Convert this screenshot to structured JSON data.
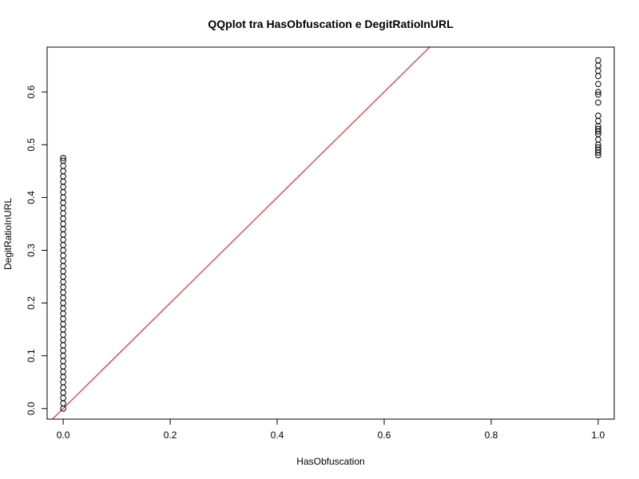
{
  "chart_data": {
    "type": "scatter",
    "title": "QQplot tra HasObfuscation e DegitRatioInURL",
    "xlabel": "HasObfuscation",
    "ylabel": "DegitRatioInURL",
    "xlim": [
      -0.03,
      1.03
    ],
    "ylim": [
      -0.02,
      0.685
    ],
    "xticks": [
      "0.0",
      "0.2",
      "0.4",
      "0.6",
      "0.8",
      "1.0"
    ],
    "xtick_values": [
      0,
      0.2,
      0.4,
      0.6,
      0.8,
      1.0
    ],
    "yticks": [
      "0.0",
      "0.1",
      "0.2",
      "0.3",
      "0.4",
      "0.5",
      "0.6"
    ],
    "ytick_values": [
      0,
      0.1,
      0.2,
      0.3,
      0.4,
      0.5,
      0.6
    ],
    "grid": false,
    "marker": "open-circle",
    "point_color": "#000000",
    "reference_line": {
      "intercept": 0,
      "slope": 1,
      "color": "#ff0000"
    },
    "series": [
      {
        "x_value": 0,
        "y": [
          0.0,
          0.01,
          0.02,
          0.03,
          0.04,
          0.05,
          0.06,
          0.07,
          0.08,
          0.09,
          0.1,
          0.11,
          0.12,
          0.13,
          0.14,
          0.15,
          0.16,
          0.17,
          0.18,
          0.19,
          0.2,
          0.21,
          0.22,
          0.23,
          0.24,
          0.25,
          0.26,
          0.27,
          0.28,
          0.29,
          0.3,
          0.31,
          0.32,
          0.33,
          0.34,
          0.35,
          0.36,
          0.37,
          0.38,
          0.39,
          0.4,
          0.41,
          0.42,
          0.43,
          0.44,
          0.45,
          0.46,
          0.47,
          0.475
        ]
      },
      {
        "x_value": 1,
        "y": [
          0.48,
          0.485,
          0.49,
          0.495,
          0.5,
          0.51,
          0.52,
          0.525,
          0.53,
          0.535,
          0.545,
          0.555,
          0.58,
          0.595,
          0.6,
          0.615,
          0.63,
          0.64,
          0.65,
          0.66
        ]
      }
    ]
  }
}
